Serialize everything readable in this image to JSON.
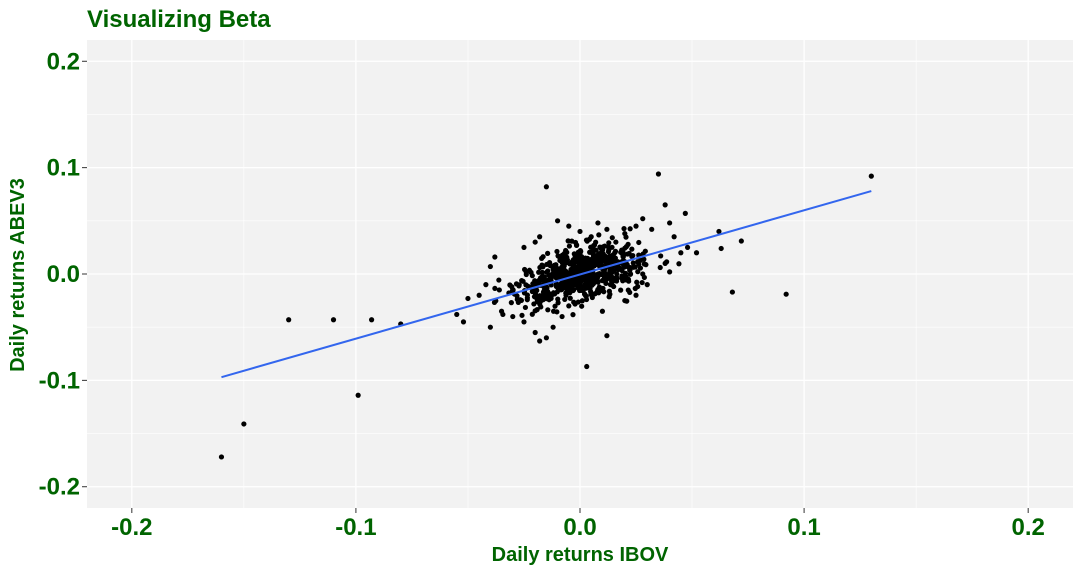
{
  "chart_data": {
    "type": "scatter",
    "title": "Visualizing Beta",
    "xlabel": "Daily returns IBOV",
    "ylabel": "Daily returns ABEV3",
    "xlim": [
      -0.22,
      0.22
    ],
    "ylim": [
      -0.22,
      0.22
    ],
    "x_ticks": [
      "-0.2",
      "-0.1",
      "0.0",
      "0.1",
      "0.2"
    ],
    "y_ticks": [
      "0.2",
      "0.1",
      "0.0",
      "-0.1",
      "-0.2"
    ],
    "grid": true,
    "colors": {
      "text": "#006400",
      "panel": "#f2f2f2",
      "grid": "#ffffff",
      "points": "#000000",
      "fit_line": "#3366ee"
    },
    "fit_line": {
      "x": [
        -0.16,
        0.13
      ],
      "y": [
        -0.097,
        0.078
      ]
    },
    "points_outliers": [
      {
        "x": -0.16,
        "y": -0.172
      },
      {
        "x": -0.15,
        "y": -0.141
      },
      {
        "x": -0.13,
        "y": -0.043
      },
      {
        "x": -0.11,
        "y": -0.043
      },
      {
        "x": -0.099,
        "y": -0.114
      },
      {
        "x": -0.093,
        "y": -0.043
      },
      {
        "x": -0.08,
        "y": -0.047
      },
      {
        "x": -0.055,
        "y": -0.038
      },
      {
        "x": -0.052,
        "y": -0.045
      },
      {
        "x": -0.05,
        "y": -0.023
      },
      {
        "x": -0.045,
        "y": -0.02
      },
      {
        "x": -0.042,
        "y": -0.01
      },
      {
        "x": -0.04,
        "y": 0.007
      },
      {
        "x": -0.038,
        "y": 0.016
      },
      {
        "x": -0.036,
        "y": -0.015
      },
      {
        "x": -0.04,
        "y": -0.05
      },
      {
        "x": -0.035,
        "y": -0.035
      },
      {
        "x": -0.03,
        "y": -0.04
      },
      {
        "x": -0.025,
        "y": -0.045
      },
      {
        "x": -0.02,
        "y": -0.055
      },
      {
        "x": -0.015,
        "y": -0.06
      },
      {
        "x": -0.018,
        "y": -0.063
      },
      {
        "x": -0.012,
        "y": -0.05
      },
      {
        "x": -0.008,
        "y": -0.04
      },
      {
        "x": -0.005,
        "y": -0.03
      },
      {
        "x": -0.02,
        "y": 0.03
      },
      {
        "x": -0.025,
        "y": 0.025
      },
      {
        "x": -0.018,
        "y": 0.035
      },
      {
        "x": -0.015,
        "y": 0.082
      },
      {
        "x": -0.01,
        "y": 0.05
      },
      {
        "x": -0.005,
        "y": 0.045
      },
      {
        "x": 0.0,
        "y": 0.04
      },
      {
        "x": 0.005,
        "y": 0.035
      },
      {
        "x": 0.008,
        "y": 0.048
      },
      {
        "x": 0.012,
        "y": 0.042
      },
      {
        "x": 0.016,
        "y": 0.03
      },
      {
        "x": 0.02,
        "y": 0.038
      },
      {
        "x": 0.025,
        "y": 0.045
      },
      {
        "x": 0.028,
        "y": 0.052
      },
      {
        "x": 0.032,
        "y": 0.042
      },
      {
        "x": 0.035,
        "y": 0.094
      },
      {
        "x": 0.038,
        "y": 0.065
      },
      {
        "x": 0.04,
        "y": 0.048
      },
      {
        "x": 0.042,
        "y": 0.035
      },
      {
        "x": 0.047,
        "y": 0.057
      },
      {
        "x": 0.045,
        "y": 0.02
      },
      {
        "x": 0.048,
        "y": 0.025
      },
      {
        "x": 0.04,
        "y": 0.002
      },
      {
        "x": 0.038,
        "y": 0.01
      },
      {
        "x": 0.036,
        "y": 0.017
      },
      {
        "x": 0.03,
        "y": -0.01
      },
      {
        "x": 0.028,
        "y": 0.0
      },
      {
        "x": 0.025,
        "y": -0.02
      },
      {
        "x": 0.02,
        "y": -0.025
      },
      {
        "x": 0.01,
        "y": -0.035
      },
      {
        "x": 0.012,
        "y": -0.058
      },
      {
        "x": 0.003,
        "y": -0.087
      },
      {
        "x": 0.052,
        "y": 0.02
      },
      {
        "x": 0.062,
        "y": 0.04
      },
      {
        "x": 0.063,
        "y": 0.024
      },
      {
        "x": 0.068,
        "y": -0.017
      },
      {
        "x": 0.072,
        "y": 0.031
      },
      {
        "x": 0.092,
        "y": -0.019
      },
      {
        "x": 0.13,
        "y": 0.092
      }
    ],
    "points_cluster": {
      "count": 700,
      "x_center": 0.0,
      "x_spread": 0.014,
      "y_center": 0.0,
      "y_spread": 0.012,
      "beta": 0.6
    }
  }
}
